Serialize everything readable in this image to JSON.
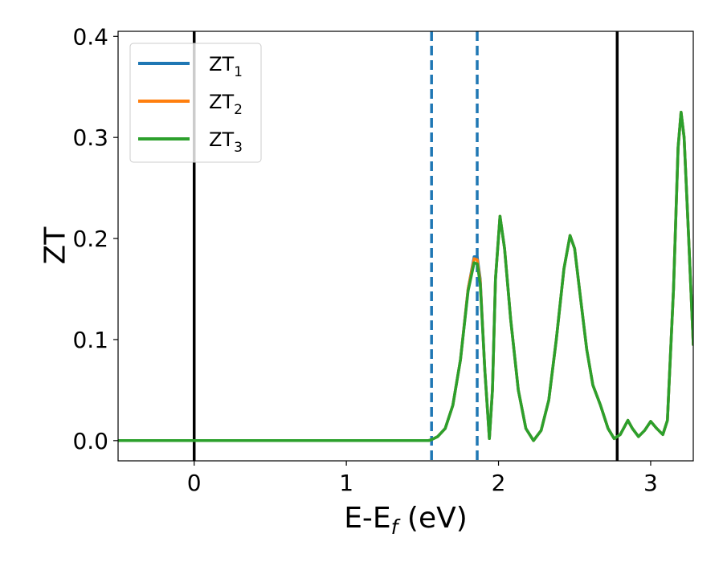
{
  "chart_data": {
    "type": "line",
    "xlabel": {
      "main": "E-E",
      "sub": "f",
      "unit": " (eV)"
    },
    "ylabel": "ZT",
    "xlim": [
      -0.5,
      3.28
    ],
    "ylim": [
      -0.02,
      0.405
    ],
    "x_ticks": [
      {
        "value": 0,
        "label": "0"
      },
      {
        "value": 1,
        "label": "1"
      },
      {
        "value": 2,
        "label": "2"
      },
      {
        "value": 3,
        "label": "3"
      }
    ],
    "y_ticks": [
      {
        "value": 0.0,
        "label": "0.0"
      },
      {
        "value": 0.1,
        "label": "0.1"
      },
      {
        "value": 0.2,
        "label": "0.2"
      },
      {
        "value": 0.3,
        "label": "0.3"
      },
      {
        "value": 0.4,
        "label": "0.4"
      }
    ],
    "legend": {
      "placement": "upper-left",
      "entries": [
        {
          "base": "ZT",
          "sub": "1",
          "color": "#1f77b4"
        },
        {
          "base": "ZT",
          "sub": "2",
          "color": "#ff7f0e"
        },
        {
          "base": "ZT",
          "sub": "3",
          "color": "#2ca02c"
        }
      ]
    },
    "vertical_lines": [
      {
        "x": 0.0,
        "style": "solid",
        "color": "#000000"
      },
      {
        "x": 1.56,
        "style": "dashed",
        "color": "#1f77b4"
      },
      {
        "x": 1.86,
        "style": "dashed",
        "color": "#1f77b4"
      },
      {
        "x": 2.78,
        "style": "solid",
        "color": "#000000"
      }
    ],
    "series": [
      {
        "color": "#1f77b4",
        "points": [
          [
            -0.5,
            0
          ],
          [
            1.54,
            0
          ],
          [
            1.56,
            0.001
          ],
          [
            1.6,
            0.004
          ],
          [
            1.65,
            0.012
          ],
          [
            1.7,
            0.035
          ],
          [
            1.75,
            0.08
          ],
          [
            1.8,
            0.15
          ],
          [
            1.84,
            0.182
          ],
          [
            1.86,
            0.182
          ],
          [
            1.88,
            0.16
          ],
          [
            1.91,
            0.07
          ],
          [
            1.94,
            0.002
          ],
          [
            1.96,
            0.05
          ],
          [
            1.98,
            0.16
          ],
          [
            2.01,
            0.222
          ],
          [
            2.04,
            0.19
          ],
          [
            2.08,
            0.12
          ],
          [
            2.13,
            0.05
          ],
          [
            2.18,
            0.012
          ],
          [
            2.23,
            0.0
          ],
          [
            2.28,
            0.01
          ],
          [
            2.33,
            0.04
          ],
          [
            2.38,
            0.1
          ],
          [
            2.43,
            0.17
          ],
          [
            2.47,
            0.203
          ],
          [
            2.5,
            0.19
          ],
          [
            2.54,
            0.14
          ],
          [
            2.58,
            0.09
          ],
          [
            2.62,
            0.055
          ],
          [
            2.67,
            0.035
          ],
          [
            2.72,
            0.012
          ],
          [
            2.76,
            0.002
          ],
          [
            2.8,
            0.006
          ],
          [
            2.85,
            0.02
          ],
          [
            2.88,
            0.012
          ],
          [
            2.92,
            0.004
          ],
          [
            2.96,
            0.01
          ],
          [
            3.0,
            0.019
          ],
          [
            3.04,
            0.012
          ],
          [
            3.08,
            0.006
          ],
          [
            3.11,
            0.02
          ],
          [
            3.15,
            0.15
          ],
          [
            3.18,
            0.29
          ],
          [
            3.2,
            0.325
          ],
          [
            3.22,
            0.3
          ],
          [
            3.25,
            0.2
          ],
          [
            3.28,
            0.095
          ]
        ]
      },
      {
        "color": "#ff7f0e",
        "points": [
          [
            -0.5,
            0
          ],
          [
            1.54,
            0
          ],
          [
            1.56,
            0.001
          ],
          [
            1.6,
            0.004
          ],
          [
            1.65,
            0.012
          ],
          [
            1.7,
            0.035
          ],
          [
            1.75,
            0.08
          ],
          [
            1.8,
            0.15
          ],
          [
            1.84,
            0.18
          ],
          [
            1.86,
            0.179
          ],
          [
            1.88,
            0.158
          ],
          [
            1.91,
            0.07
          ],
          [
            1.94,
            0.002
          ],
          [
            1.96,
            0.05
          ],
          [
            1.98,
            0.16
          ],
          [
            2.01,
            0.222
          ],
          [
            2.04,
            0.19
          ],
          [
            2.08,
            0.12
          ],
          [
            2.13,
            0.05
          ],
          [
            2.18,
            0.012
          ],
          [
            2.23,
            0.0
          ],
          [
            2.28,
            0.01
          ],
          [
            2.33,
            0.04
          ],
          [
            2.38,
            0.1
          ],
          [
            2.43,
            0.17
          ],
          [
            2.47,
            0.203
          ],
          [
            2.5,
            0.19
          ],
          [
            2.54,
            0.14
          ],
          [
            2.58,
            0.09
          ],
          [
            2.62,
            0.055
          ],
          [
            2.67,
            0.035
          ],
          [
            2.72,
            0.012
          ],
          [
            2.76,
            0.002
          ],
          [
            2.8,
            0.006
          ],
          [
            2.85,
            0.02
          ],
          [
            2.88,
            0.012
          ],
          [
            2.92,
            0.004
          ],
          [
            2.96,
            0.01
          ],
          [
            3.0,
            0.019
          ],
          [
            3.04,
            0.012
          ],
          [
            3.08,
            0.006
          ],
          [
            3.11,
            0.02
          ],
          [
            3.15,
            0.15
          ],
          [
            3.18,
            0.29
          ],
          [
            3.2,
            0.325
          ],
          [
            3.22,
            0.3
          ],
          [
            3.25,
            0.2
          ],
          [
            3.28,
            0.095
          ]
        ]
      },
      {
        "color": "#2ca02c",
        "points": [
          [
            -0.5,
            0
          ],
          [
            1.54,
            0
          ],
          [
            1.56,
            0.001
          ],
          [
            1.6,
            0.004
          ],
          [
            1.65,
            0.012
          ],
          [
            1.7,
            0.035
          ],
          [
            1.75,
            0.08
          ],
          [
            1.8,
            0.148
          ],
          [
            1.84,
            0.176
          ],
          [
            1.86,
            0.175
          ],
          [
            1.88,
            0.155
          ],
          [
            1.91,
            0.07
          ],
          [
            1.94,
            0.002
          ],
          [
            1.96,
            0.05
          ],
          [
            1.98,
            0.16
          ],
          [
            2.01,
            0.222
          ],
          [
            2.04,
            0.19
          ],
          [
            2.08,
            0.12
          ],
          [
            2.13,
            0.05
          ],
          [
            2.18,
            0.012
          ],
          [
            2.23,
            0.0
          ],
          [
            2.28,
            0.01
          ],
          [
            2.33,
            0.04
          ],
          [
            2.38,
            0.1
          ],
          [
            2.43,
            0.17
          ],
          [
            2.47,
            0.203
          ],
          [
            2.5,
            0.19
          ],
          [
            2.54,
            0.14
          ],
          [
            2.58,
            0.09
          ],
          [
            2.62,
            0.055
          ],
          [
            2.67,
            0.035
          ],
          [
            2.72,
            0.012
          ],
          [
            2.76,
            0.002
          ],
          [
            2.8,
            0.006
          ],
          [
            2.85,
            0.02
          ],
          [
            2.88,
            0.012
          ],
          [
            2.92,
            0.004
          ],
          [
            2.96,
            0.01
          ],
          [
            3.0,
            0.019
          ],
          [
            3.04,
            0.012
          ],
          [
            3.08,
            0.006
          ],
          [
            3.11,
            0.02
          ],
          [
            3.15,
            0.15
          ],
          [
            3.18,
            0.29
          ],
          [
            3.2,
            0.325
          ],
          [
            3.22,
            0.3
          ],
          [
            3.25,
            0.2
          ],
          [
            3.28,
            0.095
          ]
        ]
      }
    ]
  }
}
